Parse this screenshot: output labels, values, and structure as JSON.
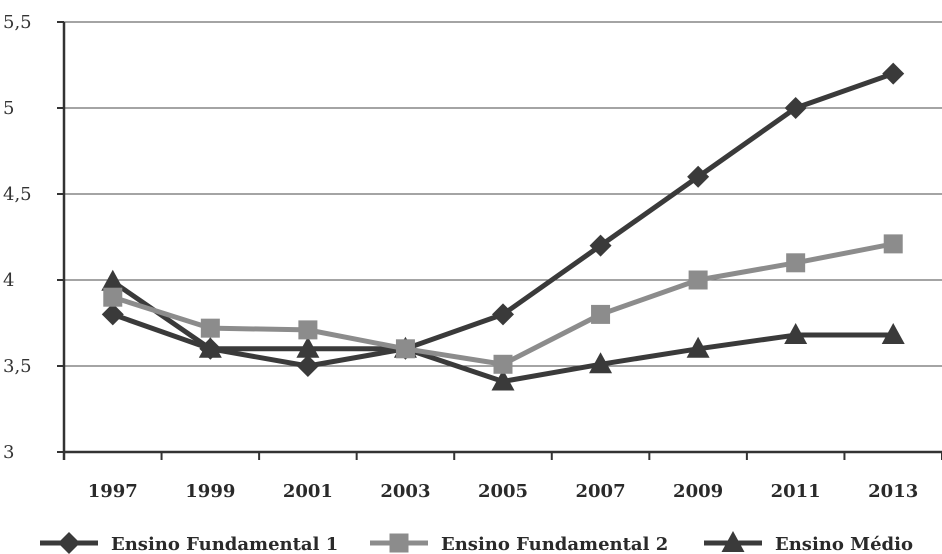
{
  "chart_data": {
    "type": "line",
    "x": [
      "1997",
      "1999",
      "2001",
      "2003",
      "2005",
      "2007",
      "2009",
      "2011",
      "2013"
    ],
    "ylim": [
      3,
      5.5
    ],
    "yticks": [
      "3",
      "3,5",
      "4",
      "4,5",
      "5",
      "5,5"
    ],
    "grid": "horizontal",
    "legend_position": "bottom",
    "series": [
      {
        "name": "Ensino Fundamental 1",
        "marker": "diamond",
        "color": "#3a3a3a",
        "values": [
          3.8,
          3.6,
          3.5,
          3.6,
          3.8,
          4.2,
          4.6,
          5.0,
          5.2
        ]
      },
      {
        "name": "Ensino Fundamental 2",
        "marker": "square",
        "color": "#8c8c8c",
        "values": [
          3.9,
          3.72,
          3.71,
          3.6,
          3.51,
          3.8,
          4.0,
          4.1,
          4.21
        ]
      },
      {
        "name": "Ensino Médio",
        "marker": "triangle",
        "color": "#3a3a3a",
        "values": [
          3.99,
          3.6,
          3.6,
          3.6,
          3.41,
          3.51,
          3.6,
          3.68,
          3.68
        ]
      }
    ]
  }
}
